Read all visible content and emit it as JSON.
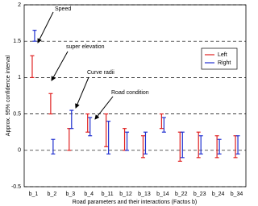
{
  "chart_data": {
    "type": "errorbar",
    "xlabel": "Road parameters and their interactions (Factos b)",
    "ylabel": "Approx. 95% confidence interval",
    "categories": [
      "b_1",
      "b_2",
      "b_3",
      "b_4",
      "b_11",
      "b_12",
      "b_13",
      "b_14",
      "b_22",
      "b_23",
      "b_24",
      "b_34"
    ],
    "series": [
      {
        "name": "Left",
        "color": "#e02020",
        "low": [
          1.0,
          0.5,
          0.0,
          0.25,
          0.05,
          0.0,
          -0.1,
          0.3,
          -0.15,
          -0.1,
          -0.1,
          -0.1
        ],
        "high": [
          1.3,
          0.78,
          0.3,
          0.5,
          0.5,
          0.3,
          0.2,
          0.5,
          0.25,
          0.25,
          0.2,
          0.2
        ]
      },
      {
        "name": "Right",
        "color": "#2030d0",
        "low": [
          1.5,
          -0.05,
          0.3,
          0.2,
          -0.05,
          0.0,
          -0.05,
          0.25,
          -0.1,
          -0.05,
          -0.05,
          -0.05
        ],
        "high": [
          1.65,
          0.15,
          0.55,
          0.45,
          0.4,
          0.25,
          0.25,
          0.45,
          0.25,
          0.2,
          0.15,
          0.2
        ]
      }
    ],
    "annotations": [
      "Speed",
      "super elevation",
      "Curve radii",
      "Road condition"
    ],
    "ylim": [
      -0.5,
      2
    ],
    "yticks": [
      -0.5,
      0,
      0.5,
      1,
      1.5,
      2
    ],
    "grid": true,
    "legend": "upper right"
  }
}
